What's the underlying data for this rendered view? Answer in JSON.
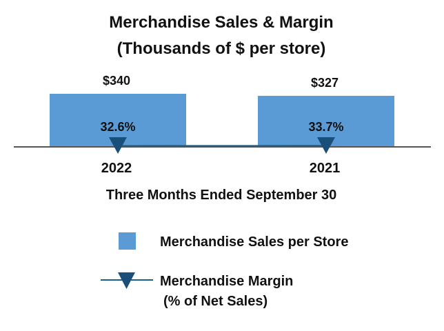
{
  "colors": {
    "bar": "#5b9bd5",
    "margin_line": "#1f5d86",
    "axis": "#555555",
    "text": "#111111"
  },
  "chart_data": {
    "type": "bar",
    "title_line1": "Merchandise Sales & Margin",
    "title_line2": "(Thousands of $ per store)",
    "xlabel": "Three Months Ended September 30",
    "categories": [
      "2022",
      "2021"
    ],
    "series": [
      {
        "name": "Merchandise Sales per Store",
        "type": "bar",
        "values": [
          340,
          327
        ],
        "labels": [
          "$340",
          "$327"
        ]
      },
      {
        "name": "Merchandise Margin (% of Net Sales)",
        "type": "line",
        "values": [
          32.6,
          33.7
        ],
        "labels": [
          "32.6%",
          "33.7%"
        ]
      }
    ],
    "legend": {
      "bar_label": "Merchandise Sales per Store",
      "line_label_1": "Merchandise Margin",
      "line_label_2": "(% of Net Sales)",
      "placement": "bottom"
    },
    "grid": false
  }
}
